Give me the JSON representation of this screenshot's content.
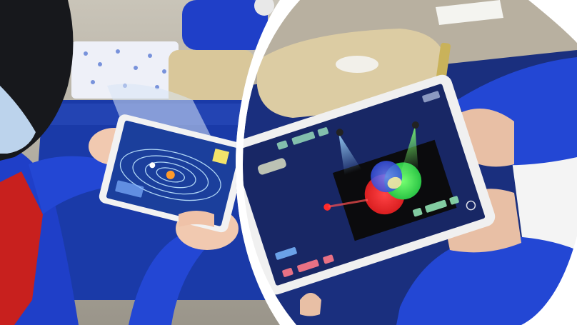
{
  "scene": {
    "left_panel": {
      "subject": "student-with-tablet-ar-solar-system"
    },
    "right_panel": {
      "subject": "student-with-tablet-ar-color-mixing"
    }
  },
  "colors": {
    "background": "#ffffff",
    "uniform_blue": "#1f3fc8",
    "desk_blue": "#1a3aa8",
    "scarf_red": "#c8201e",
    "pencil_case_tan": "#d9c79a",
    "tablet_frame": "#f2f2f2",
    "screen_blue": "#1b3f9c",
    "light_red": "#ff2a2a",
    "light_green": "#35d24a",
    "light_blue": "#2f5dff"
  }
}
